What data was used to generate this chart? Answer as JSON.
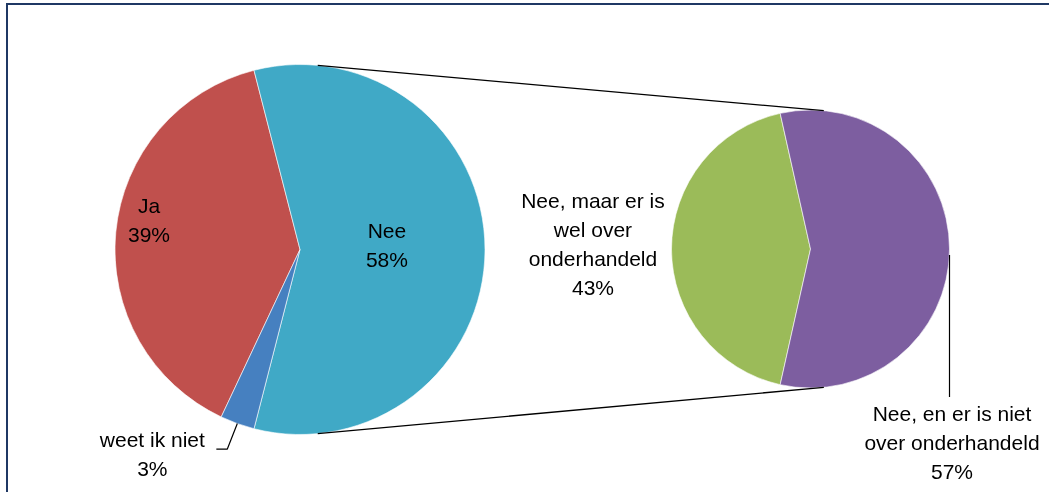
{
  "chart_data": [
    {
      "type": "pie",
      "categories": [
        "Ja",
        "Nee",
        "weet ik niet"
      ],
      "values": [
        39,
        58,
        3
      ],
      "value_labels": [
        "39%",
        "58%",
        "3%"
      ],
      "colors": [
        "#c0504d",
        "#40a9c6",
        "#4680c0"
      ]
    },
    {
      "type": "pie",
      "categories": [
        "Nee, maar er is wel over onderhandeld",
        "Nee, en er is niet over onderhandeld"
      ],
      "values": [
        43,
        57
      ],
      "value_labels": [
        "43%",
        "57%"
      ],
      "colors": [
        "#9bbb59",
        "#7d5ea0"
      ]
    }
  ]
}
